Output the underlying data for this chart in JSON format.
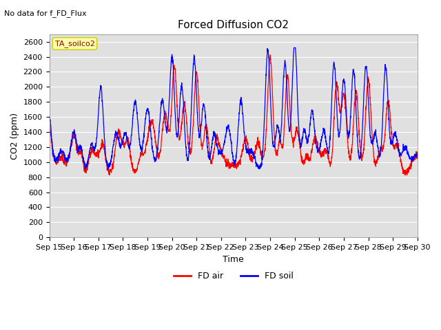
{
  "title": "Forced Diffusion CO2",
  "no_data_text": "No data for f_FD_Flux",
  "annotation_box_text": "TA_soilco2",
  "xlabel": "Time",
  "ylabel": "CO2 (ppm)",
  "ylim": [
    0,
    2700
  ],
  "yticks": [
    0,
    200,
    400,
    600,
    800,
    1000,
    1200,
    1400,
    1600,
    1800,
    2000,
    2200,
    2400,
    2600
  ],
  "x_labels": [
    "Sep 15",
    "Sep 16",
    "Sep 17",
    "Sep 18",
    "Sep 19",
    "Sep 20",
    "Sep 21",
    "Sep 22",
    "Sep 23",
    "Sep 24",
    "Sep 25",
    "Sep 26",
    "Sep 27",
    "Sep 28",
    "Sep 29",
    "Sep 30"
  ],
  "color_red": "#ff0000",
  "color_blue": "#0000ff",
  "legend_entries": [
    "FD air",
    "FD soil"
  ],
  "bg_color": "#e0e0e0",
  "fig_bg": "#ffffff",
  "linewidth": 0.9,
  "grid_color": "#ffffff",
  "annotation_facecolor": "#ffffaa",
  "annotation_edgecolor": "#cccc00",
  "annotation_textcolor": "#8b0000"
}
